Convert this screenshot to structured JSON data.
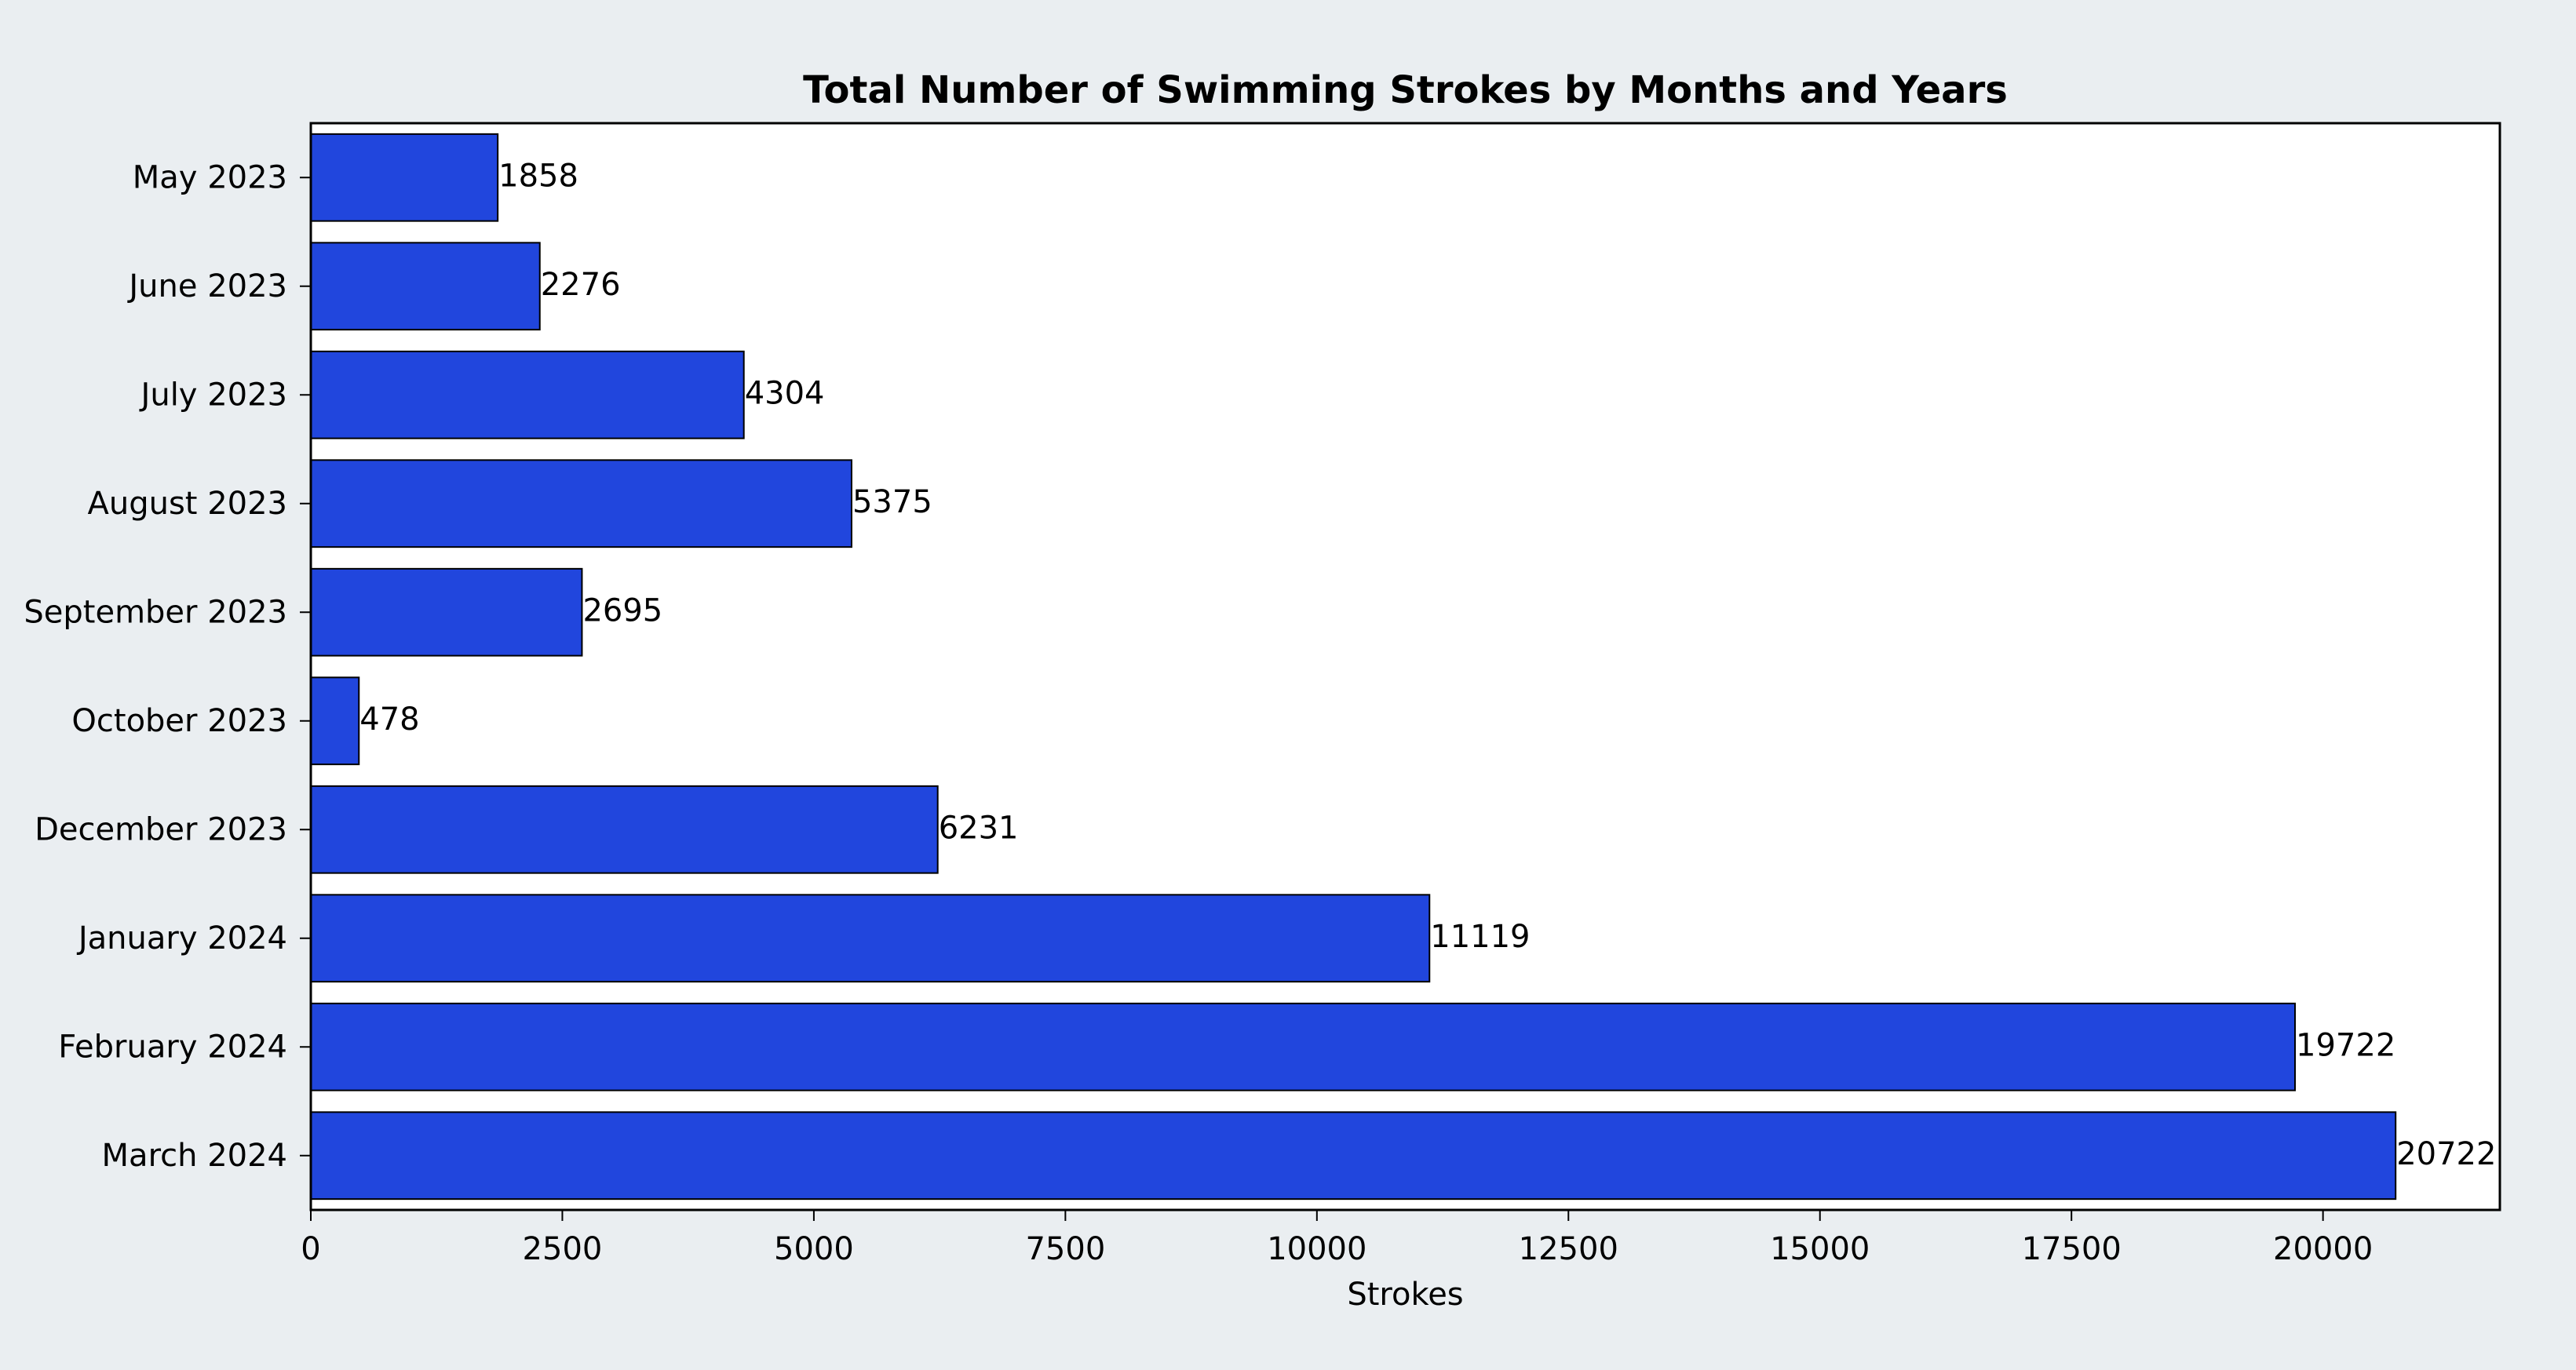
{
  "colors": {
    "figure_background": "#eaeef1",
    "plot_background": "#ffffff",
    "bar_fill": "#2146dd",
    "bar_edge": "#000000"
  },
  "chart_data": {
    "type": "bar",
    "orientation": "horizontal",
    "title": "Total Number of Swimming Strokes by Months and Years",
    "xlabel": "Strokes",
    "ylabel": "",
    "categories": [
      "May 2023",
      "June 2023",
      "July 2023",
      "August 2023",
      "September 2023",
      "October 2023",
      "December 2023",
      "January 2024",
      "February 2024",
      "March 2024"
    ],
    "values": [
      1858,
      2276,
      4304,
      5375,
      2695,
      478,
      6231,
      11119,
      19722,
      20722
    ],
    "data_labels": [
      "1858",
      "2276",
      "4304",
      "5375",
      "2695",
      "478",
      "6231",
      "11119",
      "19722",
      "20722"
    ],
    "xlim": [
      0,
      21758
    ],
    "xticks": [
      0,
      2500,
      5000,
      7500,
      10000,
      12500,
      15000,
      17500,
      20000
    ],
    "xtick_labels": [
      "0",
      "2500",
      "5000",
      "7500",
      "10000",
      "12500",
      "15000",
      "17500",
      "20000"
    ],
    "grid": false,
    "legend": false
  }
}
